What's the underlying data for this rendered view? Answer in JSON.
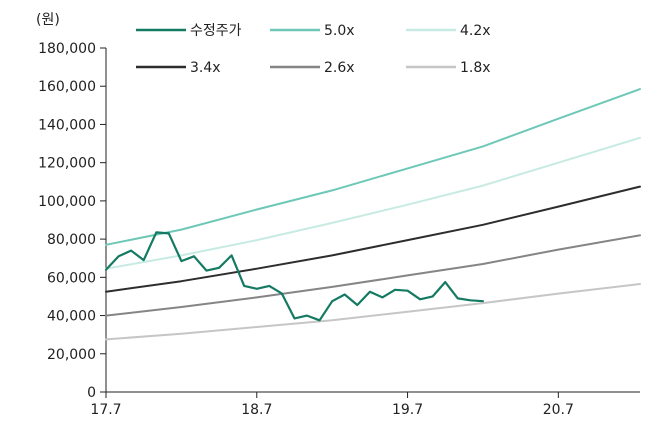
{
  "chart_data": {
    "type": "line",
    "unit_label": "(원)",
    "xlabel": "",
    "ylabel": "",
    "ylim": [
      0,
      180000
    ],
    "y_ticks": [
      0,
      20000,
      40000,
      60000,
      80000,
      100000,
      120000,
      140000,
      160000,
      180000
    ],
    "y_tick_labels": [
      "0",
      "20,000",
      "40,000",
      "60,000",
      "80,000",
      "100,000",
      "120,000",
      "140,000",
      "160,000",
      "180,000"
    ],
    "xlim": [
      0,
      42.5
    ],
    "x_ticks": [
      0,
      12,
      24,
      36
    ],
    "x_tick_labels": [
      "17.7",
      "18.7",
      "19.7",
      "20.7"
    ],
    "grid": false,
    "legend_position": "top",
    "series": [
      {
        "name": "수정주가",
        "color": "#157a63",
        "width": 2.2,
        "x": [
          0,
          1,
          2,
          3,
          4,
          5,
          6,
          7,
          8,
          9,
          10,
          11,
          12,
          13,
          14,
          15,
          16,
          17,
          18,
          19,
          20,
          21,
          22,
          23,
          24,
          25,
          26,
          27,
          28,
          29,
          30
        ],
        "y": [
          64000,
          71000,
          74000,
          69000,
          83500,
          83000,
          68500,
          71000,
          63500,
          65000,
          71500,
          55500,
          54000,
          55500,
          51500,
          38500,
          40000,
          37500,
          47500,
          51000,
          45500,
          52500,
          49500,
          53500,
          53000,
          48500,
          50000,
          57500,
          49000,
          48000,
          47500
        ]
      },
      {
        "name": "5.0x",
        "color": "#6dc8b8",
        "width": 2,
        "x": [
          0,
          6,
          12,
          18,
          24,
          30,
          36,
          42.5
        ],
        "y": [
          77000,
          85000,
          95500,
          105500,
          117000,
          128500,
          143000,
          158500
        ]
      },
      {
        "name": "4.2x",
        "color": "#c7ebe3",
        "width": 2,
        "x": [
          0,
          6,
          12,
          18,
          24,
          30,
          36,
          42.5
        ],
        "y": [
          64500,
          71500,
          79500,
          88500,
          98000,
          108000,
          120000,
          133000
        ]
      },
      {
        "name": "3.4x",
        "color": "#2d2d2d",
        "width": 2,
        "x": [
          0,
          6,
          12,
          18,
          24,
          30,
          36,
          42.5
        ],
        "y": [
          52500,
          58000,
          64500,
          71500,
          79500,
          87500,
          97000,
          107500
        ]
      },
      {
        "name": "2.6x",
        "color": "#858585",
        "width": 2,
        "x": [
          0,
          6,
          12,
          18,
          24,
          30,
          36,
          42.5
        ],
        "y": [
          40000,
          44500,
          49500,
          55000,
          61000,
          67000,
          74500,
          82000
        ]
      },
      {
        "name": "1.8x",
        "color": "#c6c6c6",
        "width": 2,
        "x": [
          0,
          6,
          12,
          18,
          24,
          30,
          36,
          42.5
        ],
        "y": [
          27500,
          30500,
          34000,
          37500,
          42000,
          46500,
          51500,
          56500
        ]
      }
    ]
  }
}
